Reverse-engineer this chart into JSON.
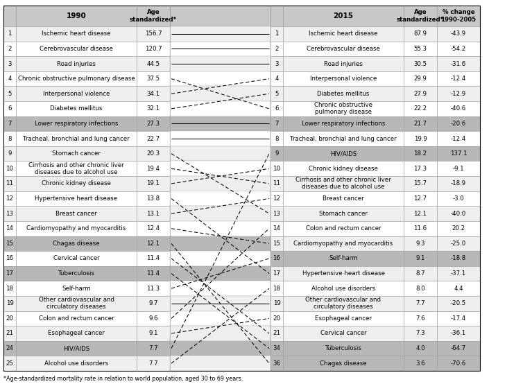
{
  "left_table": {
    "rows": [
      {
        "rank": "1",
        "cause": "Ischemic heart disease",
        "value": "156.7",
        "gray": false
      },
      {
        "rank": "2",
        "cause": "Cerebrovascular disease",
        "value": "120.7",
        "gray": false
      },
      {
        "rank": "3",
        "cause": "Road injuries",
        "value": "44.5",
        "gray": false
      },
      {
        "rank": "4",
        "cause": "Chronic obstructive pulmonary disease",
        "value": "37.5",
        "gray": false
      },
      {
        "rank": "5",
        "cause": "Interpersonal violence",
        "value": "34.1",
        "gray": false
      },
      {
        "rank": "6",
        "cause": "Diabetes mellitus",
        "value": "32.1",
        "gray": false
      },
      {
        "rank": "7",
        "cause": "Lower respiratory infections",
        "value": "27.3",
        "gray": true
      },
      {
        "rank": "8",
        "cause": "Tracheal, bronchial and lung cancer",
        "value": "22.7",
        "gray": false
      },
      {
        "rank": "9",
        "cause": "Stomach cancer",
        "value": "20.3",
        "gray": false
      },
      {
        "rank": "10",
        "cause": "Cirrhosis and other chronic liver\ndiseases due to alcohol use",
        "value": "19.4",
        "gray": false
      },
      {
        "rank": "11",
        "cause": "Chronic kidney disease",
        "value": "19.1",
        "gray": false
      },
      {
        "rank": "12",
        "cause": "Hypertensive heart disease",
        "value": "13.8",
        "gray": false
      },
      {
        "rank": "13",
        "cause": "Breast cancer",
        "value": "13.1",
        "gray": false
      },
      {
        "rank": "14",
        "cause": "Cardiomyopathy and myocarditis",
        "value": "12.4",
        "gray": false
      },
      {
        "rank": "15",
        "cause": "Chagas disease",
        "value": "12.1",
        "gray": true
      },
      {
        "rank": "16",
        "cause": "Cervical cancer",
        "value": "11.4",
        "gray": false
      },
      {
        "rank": "17",
        "cause": "Tuberculosis",
        "value": "11.4",
        "gray": true
      },
      {
        "rank": "18",
        "cause": "Self-harm",
        "value": "11.3",
        "gray": false
      },
      {
        "rank": "19",
        "cause": "Other cardiovascular and\ncirculatory diseases",
        "value": "9.7",
        "gray": false
      },
      {
        "rank": "20",
        "cause": "Colon and rectum cancer",
        "value": "9.6",
        "gray": false
      },
      {
        "rank": "21",
        "cause": "Esophageal cancer",
        "value": "9.1",
        "gray": false
      },
      {
        "rank": "24",
        "cause": "HIV/AIDS",
        "value": "7.7",
        "gray": true
      },
      {
        "rank": "25",
        "cause": "Alcohol use disorders",
        "value": "7.7",
        "gray": false
      }
    ]
  },
  "right_table": {
    "rows": [
      {
        "rank": "1",
        "cause": "Ischemic heart disease",
        "value": "87.9",
        "pct": "-43.9",
        "gray": false
      },
      {
        "rank": "2",
        "cause": "Cerebrovascular disease",
        "value": "55.3",
        "pct": "-54.2",
        "gray": false
      },
      {
        "rank": "3",
        "cause": "Road injuries",
        "value": "30.5",
        "pct": "-31.6",
        "gray": false
      },
      {
        "rank": "4",
        "cause": "Interpersonal violence",
        "value": "29.9",
        "pct": "-12.4",
        "gray": false
      },
      {
        "rank": "5",
        "cause": "Diabetes mellitus",
        "value": "27.9",
        "pct": "-12.9",
        "gray": false
      },
      {
        "rank": "6",
        "cause": "Chronic obstructive\npulmonary disease",
        "value": "22.2",
        "pct": "-40.6",
        "gray": false
      },
      {
        "rank": "7",
        "cause": "Lower respiratory infections",
        "value": "21.7",
        "pct": "-20.6",
        "gray": true
      },
      {
        "rank": "8",
        "cause": "Tracheal, bronchial and lung cancer",
        "value": "19.9",
        "pct": "-12.4",
        "gray": false
      },
      {
        "rank": "9",
        "cause": "HIV/AIDS",
        "value": "18.2",
        "pct": "137.1",
        "gray": true
      },
      {
        "rank": "10",
        "cause": "Chronic kidney disease",
        "value": "17.3",
        "pct": "-9.1",
        "gray": false
      },
      {
        "rank": "11",
        "cause": "Cirrhosis and other chronic liver\ndiseases due to alcohol use",
        "value": "15.7",
        "pct": "-18.9",
        "gray": false
      },
      {
        "rank": "12",
        "cause": "Breast cancer",
        "value": "12.7",
        "pct": "-3.0",
        "gray": false
      },
      {
        "rank": "13",
        "cause": "Stomach cancer",
        "value": "12.1",
        "pct": "-40.0",
        "gray": false
      },
      {
        "rank": "14",
        "cause": "Colon and rectum cancer",
        "value": "11.6",
        "pct": "20.2",
        "gray": false
      },
      {
        "rank": "15",
        "cause": "Cardiomyopathy and myocarditis",
        "value": "9.3",
        "pct": "-25.0",
        "gray": false
      },
      {
        "rank": "16",
        "cause": "Self-harm",
        "value": "9.1",
        "pct": "-18.8",
        "gray": true
      },
      {
        "rank": "17",
        "cause": "Hypertensive heart disease",
        "value": "8.7",
        "pct": "-37.1",
        "gray": false
      },
      {
        "rank": "18",
        "cause": "Alcohol use disorders",
        "value": "8.0",
        "pct": "4.4",
        "gray": false
      },
      {
        "rank": "19",
        "cause": "Other cardiovascular and\ncirculatory diseases",
        "value": "7.7",
        "pct": "-20.5",
        "gray": false
      },
      {
        "rank": "20",
        "cause": "Esophageal cancer",
        "value": "7.6",
        "pct": "-17.4",
        "gray": false
      },
      {
        "rank": "21",
        "cause": "Cervical cancer",
        "value": "7.3",
        "pct": "-36.1",
        "gray": false
      },
      {
        "rank": "34",
        "cause": "Tuberculosis",
        "value": "4.0",
        "pct": "-64.7",
        "gray": true
      },
      {
        "rank": "36",
        "cause": "Chagas disease",
        "value": "3.6",
        "pct": "-70.6",
        "gray": true
      }
    ]
  },
  "connections": [
    {
      "left_rank": "1",
      "right_rank": "1",
      "style": "solid"
    },
    {
      "left_rank": "2",
      "right_rank": "2",
      "style": "solid"
    },
    {
      "left_rank": "3",
      "right_rank": "3",
      "style": "solid"
    },
    {
      "left_rank": "4",
      "right_rank": "6",
      "style": "dashed"
    },
    {
      "left_rank": "5",
      "right_rank": "4",
      "style": "dashed"
    },
    {
      "left_rank": "6",
      "right_rank": "5",
      "style": "dashed"
    },
    {
      "left_rank": "7",
      "right_rank": "7",
      "style": "solid"
    },
    {
      "left_rank": "8",
      "right_rank": "8",
      "style": "solid"
    },
    {
      "left_rank": "9",
      "right_rank": "13",
      "style": "dashed"
    },
    {
      "left_rank": "10",
      "right_rank": "11",
      "style": "dashed"
    },
    {
      "left_rank": "11",
      "right_rank": "10",
      "style": "dashed"
    },
    {
      "left_rank": "12",
      "right_rank": "17",
      "style": "dashed"
    },
    {
      "left_rank": "13",
      "right_rank": "12",
      "style": "dashed"
    },
    {
      "left_rank": "14",
      "right_rank": "15",
      "style": "dashed"
    },
    {
      "left_rank": "15",
      "right_rank": "36",
      "style": "dashed"
    },
    {
      "left_rank": "16",
      "right_rank": "21",
      "style": "dashed"
    },
    {
      "left_rank": "17",
      "right_rank": "34",
      "style": "dashed"
    },
    {
      "left_rank": "18",
      "right_rank": "16",
      "style": "dashed"
    },
    {
      "left_rank": "19",
      "right_rank": "19",
      "style": "solid"
    },
    {
      "left_rank": "20",
      "right_rank": "14",
      "style": "dashed"
    },
    {
      "left_rank": "21",
      "right_rank": "20",
      "style": "dashed"
    },
    {
      "left_rank": "24",
      "right_rank": "9",
      "style": "dashed"
    },
    {
      "left_rank": "25",
      "right_rank": "18",
      "style": "dashed"
    }
  ],
  "footnote": "*Age-standardized mortality rate in relation to world population, aged 30 to 69 years.",
  "header_bg": "#c8c8c8",
  "gray_bg": "#b8b8b8",
  "white_bg": "#ffffff",
  "light_bg": "#efefef",
  "border_col": "#999999"
}
